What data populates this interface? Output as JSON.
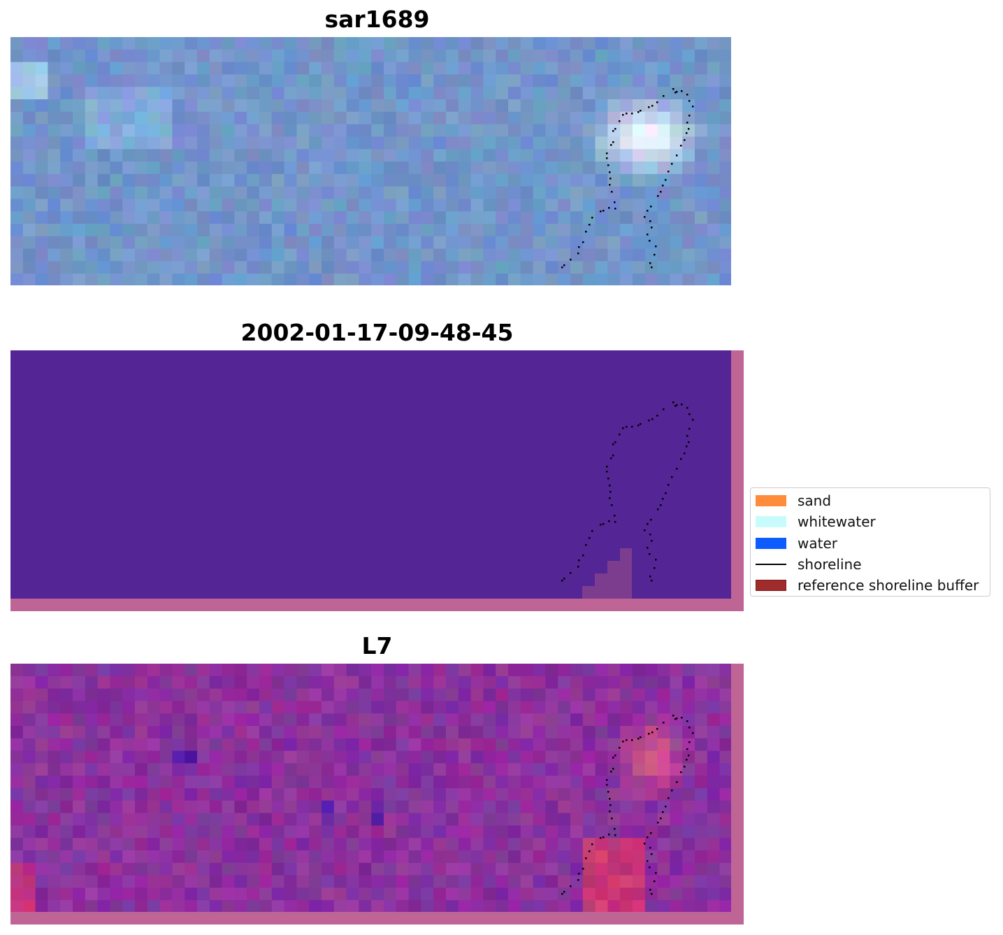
{
  "panels": [
    {
      "title": "sar1689"
    },
    {
      "title": "2002-01-17-09-48-45"
    },
    {
      "title": "L7"
    }
  ],
  "legend": {
    "items": [
      {
        "label": "sand",
        "color": "#ff8c3a",
        "kind": "patch"
      },
      {
        "label": "whitewater",
        "color": "#c8fcfc",
        "kind": "patch"
      },
      {
        "label": "water",
        "color": "#0d5cff",
        "kind": "patch"
      },
      {
        "label": "shoreline",
        "color": "#000000",
        "kind": "line"
      },
      {
        "label": "reference shoreline buffer",
        "color": "#a02b2b",
        "kind": "patch"
      }
    ]
  },
  "colors": {
    "sar_base": "#6f8fc6",
    "classification_background": "#532595",
    "reference_buffer_overlay": "#bf6596",
    "l7_base": "#7e2d9a"
  }
}
